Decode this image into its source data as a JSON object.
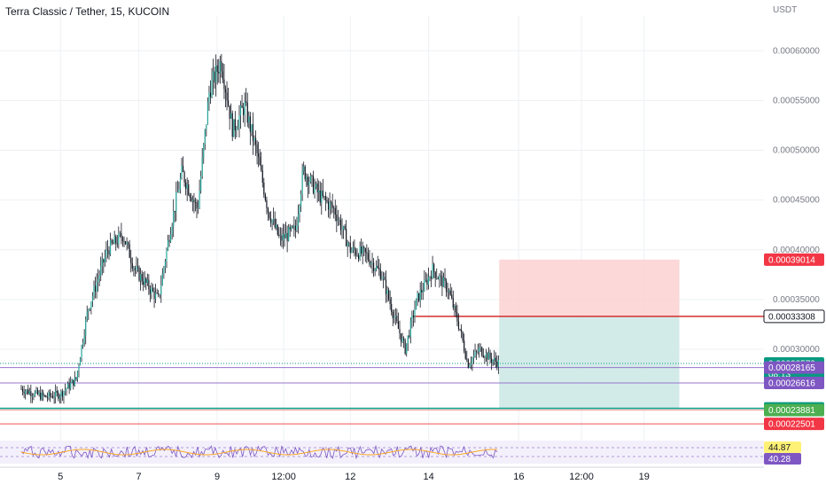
{
  "title": "Terra Classic / Tether, 15, KUCOIN",
  "price_unit": "USDT",
  "colors": {
    "up": "#26a69a",
    "down": "#ef5350",
    "candle": "#131722",
    "grid": "#eef0f3",
    "axis_text": "#787b86",
    "stop_zone": "#fbd1d1",
    "target_zone": "#cde9e5",
    "entry_line": "#d32f2f",
    "current_line": "#089981",
    "rsi_line": "#7e57c2",
    "ma_line": "#f9a825"
  },
  "chart_data": {
    "type": "candlestick",
    "y_range": [
      0.00021,
      0.000635
    ],
    "y_ticks": [
      "0.00030000",
      "0.00035000",
      "0.00040000",
      "0.00045000",
      "0.00050000",
      "0.00055000",
      "0.00060000"
    ],
    "x_tick_labels": [
      "5",
      "7",
      "9",
      "12:00",
      "12",
      "14",
      "16",
      "12:00",
      "19"
    ],
    "price_path": [
      [
        0.0,
        0.00026
      ],
      [
        0.6,
        0.000252
      ],
      [
        1.0,
        0.000255
      ],
      [
        1.4,
        0.00027
      ],
      [
        1.7,
        0.00034
      ],
      [
        2.2,
        0.0004
      ],
      [
        2.6,
        0.000415
      ],
      [
        2.9,
        0.00038
      ],
      [
        3.2,
        0.000365
      ],
      [
        3.5,
        0.00035
      ],
      [
        3.8,
        0.00042
      ],
      [
        4.1,
        0.000478
      ],
      [
        4.5,
        0.00044
      ],
      [
        4.8,
        0.00056
      ],
      [
        5.1,
        0.00059
      ],
      [
        5.4,
        0.00052
      ],
      [
        5.7,
        0.000545
      ],
      [
        6.0,
        0.0005
      ],
      [
        6.3,
        0.00044
      ],
      [
        6.6,
        0.00041
      ],
      [
        7.0,
        0.00042
      ],
      [
        7.2,
        0.00048
      ],
      [
        7.6,
        0.000455
      ],
      [
        8.0,
        0.00044
      ],
      [
        8.4,
        0.0004
      ],
      [
        8.8,
        0.000395
      ],
      [
        9.2,
        0.000375
      ],
      [
        9.5,
        0.000335
      ],
      [
        9.8,
        0.0003
      ],
      [
        10.1,
        0.00035
      ],
      [
        10.5,
        0.00038
      ],
      [
        10.9,
        0.00036
      ],
      [
        11.2,
        0.00032
      ],
      [
        11.4,
        0.000285
      ],
      [
        11.7,
        0.0003
      ],
      [
        12.0,
        0.00029
      ],
      [
        12.2,
        0.000286
      ]
    ],
    "levels": {
      "stop": 0.00039014,
      "entry": 0.00033308,
      "current": 0.00028573,
      "purple_1": 0.00028165,
      "purple_2": 0.00026616,
      "green_1": 0.00024063,
      "green_2": 0.00023881,
      "red_low": 0.00022501
    },
    "position_tool": {
      "x_start": 12.2,
      "x_end": 16.8,
      "entry": 0.00033308,
      "stop": 0.00039014,
      "target": 0.00024063
    },
    "rsi": {
      "values": [
        44.87,
        40.28
      ]
    }
  },
  "price_labels": [
    {
      "text": "0.00039014",
      "bg": "#f23645",
      "fg": "#ffffff",
      "level": "stop"
    },
    {
      "text": "0.00033308",
      "bg": "#ffffff",
      "fg": "#131722",
      "level": "entry",
      "border": "#131722"
    },
    {
      "text": "0.00028573",
      "sub": "08:13",
      "bg": "#089981",
      "fg": "#ffffff",
      "level": "current"
    },
    {
      "text": "0.00028165",
      "bg": "#7e57c2",
      "fg": "#ffffff",
      "level": "purple_1"
    },
    {
      "text": "0.00026616",
      "bg": "#7e57c2",
      "fg": "#ffffff",
      "level": "purple_2"
    },
    {
      "text": "0.00024063",
      "bg": "#089981",
      "fg": "#ffffff",
      "level": "green_1"
    },
    {
      "text": "0.00023881",
      "bg": "#4caf50",
      "fg": "#ffffff",
      "level": "green_2"
    },
    {
      "text": "0.00022501",
      "bg": "#f23645",
      "fg": "#ffffff",
      "level": "red_low"
    }
  ],
  "rsi_labels": [
    {
      "text": "44.87",
      "bg": "#fff176",
      "fg": "#131722"
    },
    {
      "text": "40.28",
      "bg": "#7e57c2",
      "fg": "#ffffff"
    }
  ]
}
